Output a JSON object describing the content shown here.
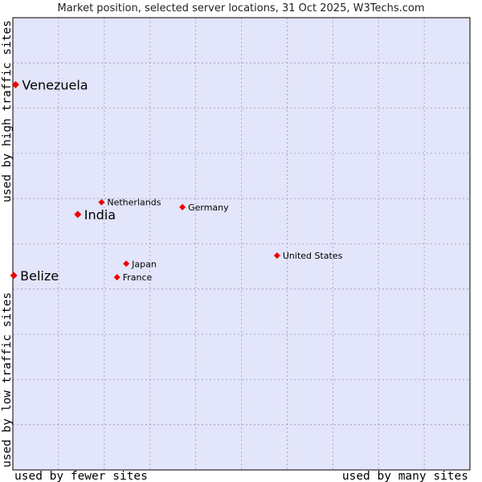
{
  "chart_data": {
    "type": "scatter",
    "title": "Market position, selected server locations, 31 Oct 2025, W3Techs.com",
    "xlabel_left": "used by fewer sites",
    "xlabel_right": "used by many sites",
    "ylabel_bottom": "used by low traffic sites",
    "ylabel_top": "used by high traffic sites",
    "xlim": [
      0,
      100
    ],
    "ylim": [
      0,
      100
    ],
    "grid": true,
    "colors": {
      "plot_background": "#e3e5fa",
      "grid": "#9a9ab4",
      "frame": "#000000",
      "marker": "#ee0000"
    },
    "points": [
      {
        "name": "Venezuela",
        "x": 0.6,
        "y": 85.2,
        "highlight": true
      },
      {
        "name": "India",
        "x": 14.2,
        "y": 56.5,
        "highlight": true
      },
      {
        "name": "Belize",
        "x": 0.2,
        "y": 43.0,
        "highlight": true
      },
      {
        "name": "Netherlands",
        "x": 19.4,
        "y": 59.2,
        "highlight": false
      },
      {
        "name": "Germany",
        "x": 37.1,
        "y": 58.1,
        "highlight": false
      },
      {
        "name": "United States",
        "x": 57.8,
        "y": 47.4,
        "highlight": false
      },
      {
        "name": "Japan",
        "x": 24.8,
        "y": 45.6,
        "highlight": false
      },
      {
        "name": "France",
        "x": 22.8,
        "y": 42.6,
        "highlight": false
      }
    ]
  }
}
